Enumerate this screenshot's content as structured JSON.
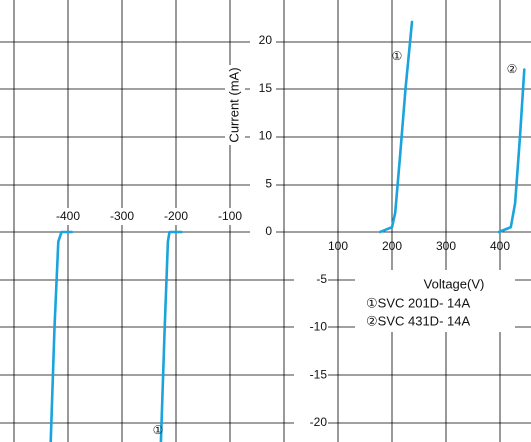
{
  "chart_data": {
    "type": "line",
    "xlabel": "Voltage(V)",
    "ylabel": "Current (mA)",
    "xlim": [
      -500,
      500
    ],
    "ylim": [
      -22,
      22
    ],
    "grid": true,
    "x_ticks": [
      {
        "value": -400,
        "label": "-400"
      },
      {
        "value": -300,
        "label": "-300"
      },
      {
        "value": -200,
        "label": "-200"
      },
      {
        "value": -100,
        "label": "-100"
      },
      {
        "value": 100,
        "label": "100"
      },
      {
        "value": 200,
        "label": "200"
      },
      {
        "value": 300,
        "label": "300"
      },
      {
        "value": 400,
        "label": "400"
      }
    ],
    "y_ticks": [
      {
        "value": 20,
        "label": "20"
      },
      {
        "value": 15,
        "label": "15"
      },
      {
        "value": 10,
        "label": "10"
      },
      {
        "value": 5,
        "label": "5"
      },
      {
        "value": 0,
        "label": "0"
      },
      {
        "value": -5,
        "label": "-5"
      },
      {
        "value": -10,
        "label": "-10"
      },
      {
        "value": -15,
        "label": "-15"
      },
      {
        "value": -20,
        "label": "-20"
      }
    ],
    "legend": [
      "①SVC 201D- 14A",
      "②SVC 431D- 14A"
    ],
    "series": [
      {
        "marker": "①",
        "points": [
          {
            "x": -228,
            "y": -22
          },
          {
            "x": -221,
            "y": -10
          },
          {
            "x": -215,
            "y": -1
          },
          {
            "x": -212,
            "y": 0
          },
          {
            "x": -190,
            "y": 0
          },
          {
            "x": 178,
            "y": 0
          },
          {
            "x": 200,
            "y": 0.5
          },
          {
            "x": 206,
            "y": 2
          },
          {
            "x": 215,
            "y": 8
          },
          {
            "x": 225,
            "y": 15
          },
          {
            "x": 237,
            "y": 22
          }
        ]
      },
      {
        "marker": "②",
        "points": [
          {
            "x": -432,
            "y": -22
          },
          {
            "x": -425,
            "y": -10
          },
          {
            "x": -418,
            "y": -1
          },
          {
            "x": -412,
            "y": 0
          },
          {
            "x": -393,
            "y": 0
          },
          {
            "x": 398,
            "y": 0
          },
          {
            "x": 420,
            "y": 0.5
          },
          {
            "x": 428,
            "y": 3
          },
          {
            "x": 437,
            "y": 10
          },
          {
            "x": 445,
            "y": 17
          }
        ]
      }
    ],
    "line_color": "#1aa3dc",
    "grid_color": "#000000"
  }
}
